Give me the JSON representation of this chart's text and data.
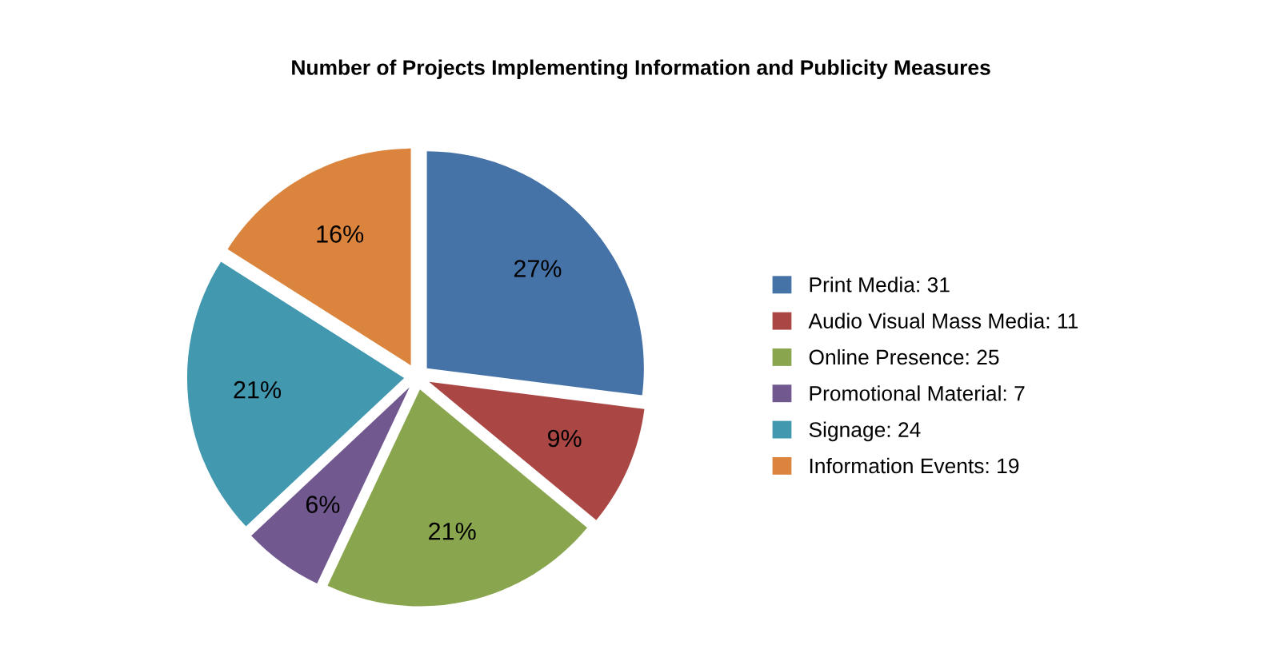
{
  "chart_data": {
    "type": "pie",
    "title": "Number of Projects Implementing Information and Publicity Measures",
    "categories": [
      "Print Media: 31",
      "Audio Visual Mass Media: 11",
      "Online Presence: 25",
      "Promotional Material: 7",
      "Signage: 24",
      "Information Events: 19"
    ],
    "values": [
      27,
      9,
      21,
      6,
      21,
      16
    ],
    "value_labels": [
      "27%",
      "9%",
      "21%",
      "6%",
      "21%",
      "16%"
    ],
    "colors": [
      "#4572a7",
      "#aa4643",
      "#89a54e",
      "#71588f",
      "#4198af",
      "#db843d"
    ],
    "legend": "right"
  }
}
